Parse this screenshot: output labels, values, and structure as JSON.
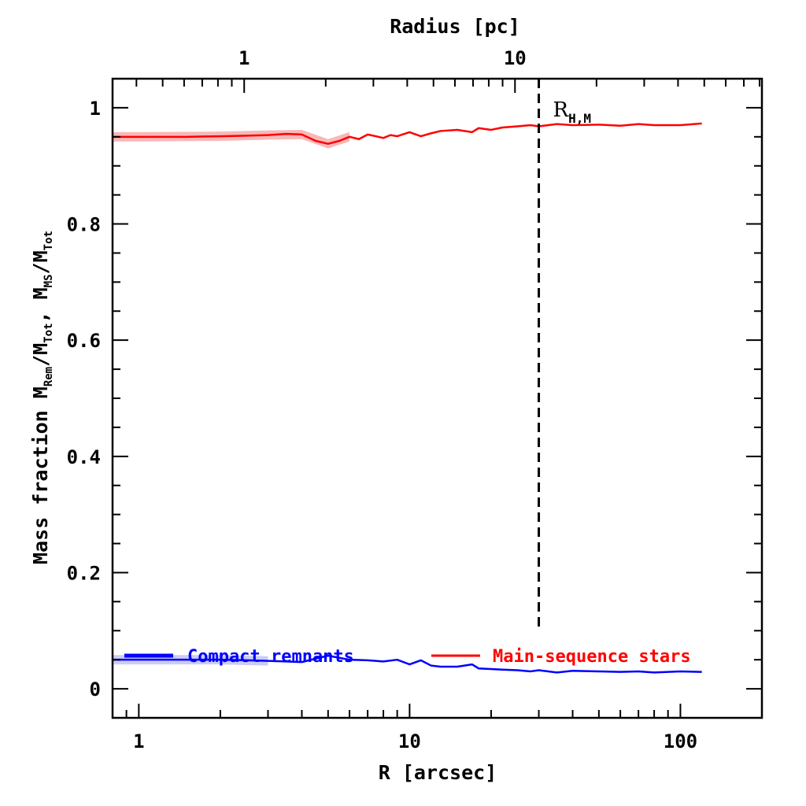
{
  "chart_data": {
    "type": "line",
    "xscale": "log",
    "xlim": [
      0.8,
      200
    ],
    "ylim": [
      -0.05,
      1.05
    ],
    "xlabel": "R [arcsec]",
    "ylabel": {
      "prefix": "Mass fraction  M",
      "sub1": "Rem",
      "mid1": "/M",
      "sub2": "Tot",
      "mid2": ", M",
      "sub3": "MS",
      "mid3": "/M",
      "sub4": "Tot"
    },
    "top_axis": {
      "label": "Radius [pc]",
      "tick_labels": [
        "1",
        "10"
      ],
      "tick_values": [
        1,
        10
      ],
      "tick_positions_arcsec": [
        2.45,
        24.5
      ]
    },
    "x_tick_labels": [
      "1",
      "10",
      "100"
    ],
    "x_tick_values": [
      1,
      10,
      100
    ],
    "y_tick_labels": [
      "0",
      "0.2",
      "0.4",
      "0.6",
      "0.8",
      "1"
    ],
    "y_tick_values": [
      0,
      0.2,
      0.4,
      0.6,
      0.8,
      1
    ],
    "vline": {
      "x": 30,
      "style": "dashed",
      "label_main": "R",
      "label_sub": "H,M"
    },
    "series": [
      {
        "name": "Main-sequence stars",
        "color": "#ff0000",
        "band_color": "#f8b8b8",
        "x": [
          0.8,
          1.0,
          1.5,
          2.0,
          2.5,
          3.0,
          3.5,
          4.0,
          4.5,
          5.0,
          5.5,
          6.0,
          6.5,
          7.0,
          7.5,
          8.0,
          8.5,
          9.0,
          10.0,
          11.0,
          12.0,
          13.0,
          15.0,
          17.0,
          18.0,
          20.0,
          22.0,
          25.0,
          28.0,
          30.0,
          35.0,
          40.0,
          50.0,
          60.0,
          70.0,
          80.0,
          100.0,
          120.0
        ],
        "y": [
          0.95,
          0.95,
          0.95,
          0.951,
          0.952,
          0.953,
          0.955,
          0.954,
          0.943,
          0.938,
          0.943,
          0.95,
          0.946,
          0.954,
          0.951,
          0.948,
          0.953,
          0.951,
          0.958,
          0.951,
          0.956,
          0.96,
          0.962,
          0.958,
          0.965,
          0.962,
          0.966,
          0.968,
          0.97,
          0.968,
          0.972,
          0.97,
          0.971,
          0.969,
          0.972,
          0.97,
          0.97,
          0.973
        ],
        "band_x": [
          0.8,
          1.0,
          2.0,
          3.0,
          4.0,
          5.0,
          6.0
        ],
        "band_half_width": 0.008
      },
      {
        "name": "Compact remnants",
        "color": "#0000ff",
        "band_color": "#ccccf4",
        "x": [
          0.8,
          1.0,
          1.5,
          2.0,
          2.5,
          3.0,
          3.5,
          4.0,
          5.0,
          6.0,
          7.0,
          8.0,
          9.0,
          10.0,
          11.0,
          12.0,
          13.0,
          15.0,
          17.0,
          18.0,
          20.0,
          22.0,
          25.0,
          28.0,
          30.0,
          35.0,
          40.0,
          50.0,
          60.0,
          70.0,
          80.0,
          100.0,
          120.0
        ],
        "y": [
          0.05,
          0.05,
          0.05,
          0.05,
          0.049,
          0.048,
          0.047,
          0.046,
          0.057,
          0.05,
          0.049,
          0.047,
          0.05,
          0.042,
          0.049,
          0.04,
          0.038,
          0.038,
          0.042,
          0.035,
          0.034,
          0.033,
          0.032,
          0.03,
          0.032,
          0.028,
          0.031,
          0.03,
          0.029,
          0.03,
          0.028,
          0.03,
          0.029
        ],
        "band_x": [
          0.8,
          1.0,
          2.0,
          3.0
        ],
        "band_half_width": 0.008
      }
    ],
    "legend": [
      {
        "label": "Compact remnants",
        "color": "#0000ff"
      },
      {
        "label": "Main-sequence stars",
        "color": "#ff0000"
      }
    ]
  }
}
